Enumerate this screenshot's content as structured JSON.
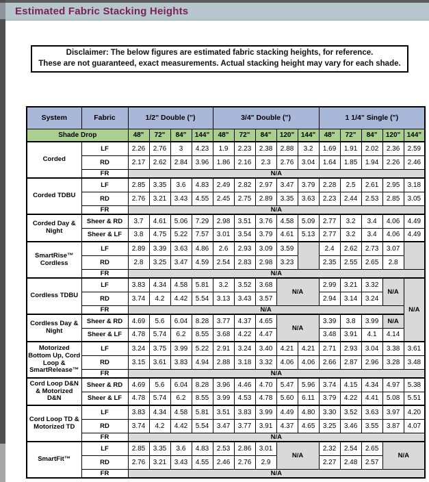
{
  "title": "Estimated Fabric Stacking Heights",
  "disclaimer": {
    "line1": "Disclaimer: The below figures are estimated fabric stacking heights, for reference.",
    "line2": "These are not guaranteed, exact measurements. Actual stacking height may vary for each shade."
  },
  "colors": {
    "title_text": "#7d2252",
    "title_band_bg": "#b5c7cd",
    "header_blue": "#a9b8d8",
    "shade_green": "#a9d08e",
    "na_gray": "#d9d9d9"
  },
  "table": {
    "corner_system": "System",
    "corner_fabric": "Fabric",
    "shade_drop_label": "Shade Drop",
    "na_label": "N/A",
    "groups": [
      {
        "label": "1/2\" Double (\")",
        "cols": [
          "48\"",
          "72\"",
          "84\"",
          "144\""
        ]
      },
      {
        "label": "3/4\" Double (\")",
        "cols": [
          "48\"",
          "72\"",
          "84\"",
          "120\"",
          "144\""
        ]
      },
      {
        "label": "1 1/4\" Single (\")",
        "cols": [
          "48\"",
          "72\"",
          "84\"",
          "120\"",
          "144\""
        ]
      }
    ],
    "sections": [
      {
        "system": "Corded",
        "rows": [
          {
            "fabric": "LF",
            "cells": [
              "2.26",
              "2.76",
              "3",
              "4.23",
              "1.9",
              "2.23",
              "2.38",
              "2.88",
              "3.2",
              "1.69",
              "1.91",
              "2.02",
              "2.36",
              "2.59"
            ]
          },
          {
            "fabric": "RD",
            "cells": [
              "2.17",
              "2.62",
              "2.84",
              "3.96",
              "1.86",
              "2.16",
              "2.3",
              "2.76",
              "3.04",
              "1.64",
              "1.85",
              "1.94",
              "2.26",
              "2.46"
            ]
          },
          {
            "fabric": "FR",
            "cells": [
              {
                "na": true,
                "c": 14
              }
            ]
          }
        ]
      },
      {
        "system": "Corded TDBU",
        "rows": [
          {
            "fabric": "LF",
            "cells": [
              "2.85",
              "3.35",
              "3.6",
              "4.83",
              "2.49",
              "2.82",
              "2.97",
              "3.47",
              "3.79",
              "2.28",
              "2.5",
              "2.61",
              "2.95",
              "3.18"
            ]
          },
          {
            "fabric": "RD",
            "cells": [
              "2.76",
              "3.21",
              "3.43",
              "4.55",
              "2.45",
              "2.75",
              "2.89",
              "3.35",
              "3.63",
              "2.23",
              "2.44",
              "2.53",
              "2.85",
              "3.05"
            ]
          },
          {
            "fabric": "FR",
            "cells": [
              {
                "na": true,
                "c": 14
              }
            ]
          }
        ]
      },
      {
        "system": "Corded Day & Night",
        "rows": [
          {
            "fabric": "Sheer & RD",
            "cells": [
              "3.7",
              "4.61",
              "5.06",
              "7.29",
              "2.98",
              "3.51",
              "3.76",
              "4.58",
              "5.09",
              "2.77",
              "3.2",
              "3.4",
              "4.06",
              "4.49"
            ]
          },
          {
            "fabric": "Sheer & LF",
            "cells": [
              "3.8",
              "4.75",
              "5.22",
              "7.57",
              "3.01",
              "3.54",
              "3.79",
              "4.61",
              "5.13",
              "2.77",
              "3.2",
              "3.4",
              "4.06",
              "4.49"
            ]
          }
        ]
      },
      {
        "system": "SmartRise™ Cordless",
        "rows": [
          {
            "fabric": "LF",
            "cells": [
              "2.89",
              "3.39",
              "3.63",
              "4.86",
              "2.6",
              "2.93",
              "3.09",
              "3.59",
              {
                "gray": true,
                "r": 2
              },
              "2.4",
              "2.62",
              "2.73",
              "3.07",
              {
                "gray": true,
                "r": 2
              }
            ]
          },
          {
            "fabric": "RD",
            "cells": [
              "2.8",
              "3.25",
              "3.47",
              "4.59",
              "2.54",
              "2.83",
              "2.98",
              "3.23",
              "2.35",
              "2.55",
              "2.65",
              "2.8"
            ]
          },
          {
            "fabric": "FR",
            "cells": [
              {
                "na": true,
                "c": 14
              }
            ]
          }
        ]
      },
      {
        "system": "Cordless TDBU",
        "rows": [
          {
            "fabric": "LF",
            "cells": [
              "3.83",
              "4.34",
              "4.58",
              "5.81",
              "3.2",
              "3.52",
              "3.68",
              {
                "na": true,
                "c": 2,
                "r": 2
              },
              "2.99",
              "3.21",
              "3.32",
              {
                "na": true,
                "r": 2
              },
              {
                "na": true,
                "r": 5
              }
            ]
          },
          {
            "fabric": "RD",
            "cells": [
              "3.74",
              "4.2",
              "4.42",
              "5.54",
              "3.13",
              "3.43",
              "3.57",
              "2.94",
              "3.14",
              "3.24"
            ]
          },
          {
            "fabric": "FR",
            "cells": [
              {
                "na": true,
                "c": 13
              }
            ]
          }
        ]
      },
      {
        "system": "Cordless Day & Night",
        "rows": [
          {
            "fabric": "Sheer & RD",
            "cells": [
              "4.69",
              "5.6",
              "6.04",
              "8.28",
              "3.77",
              "4.37",
              "4.65",
              {
                "na": true,
                "c": 2,
                "r": 2
              },
              "3.39",
              "3.8",
              "3.99",
              {
                "na": true
              }
            ]
          },
          {
            "fabric": "Sheer & LF",
            "cells": [
              "4.78",
              "5.74",
              "6.2",
              "8.55",
              "3.68",
              "4.22",
              "4.47",
              "3.48",
              "3.91",
              "4.1",
              "4.14"
            ]
          }
        ]
      },
      {
        "system": "Motorized Bottom Up, Cord Loop & SmartRelease™",
        "rows": [
          {
            "fabric": "LF",
            "cells": [
              "3.24",
              "3.75",
              "3.99",
              "5.22",
              "2.91",
              "3.24",
              "3.40",
              "4.21",
              "4.21",
              "2.71",
              "2.93",
              "3.04",
              "3.38",
              "3.61"
            ]
          },
          {
            "fabric": "RD",
            "cells": [
              "3.15",
              "3.61",
              "3.83",
              "4.94",
              "2.88",
              "3.18",
              "3.32",
              "4.06",
              "4.06",
              "2.66",
              "2.87",
              "2.96",
              "3.28",
              "3.48"
            ]
          },
          {
            "fabric": "FR",
            "cells": [
              {
                "na": true,
                "c": 14
              }
            ]
          }
        ]
      },
      {
        "system": "Cord Loop D&N & Motorized D&N",
        "rows": [
          {
            "fabric": "Sheer & RD",
            "cells": [
              "4.69",
              "5.6",
              "6.04",
              "8.28",
              "3.96",
              "4.46",
              "4.70",
              "5.47",
              "5.96",
              "3.74",
              "4.15",
              "4.34",
              "4.97",
              "5.38"
            ]
          },
          {
            "fabric": "Sheer & LF",
            "cells": [
              "4.78",
              "5.74",
              "6.2",
              "8.55",
              "3.99",
              "4.53",
              "4.78",
              "5.60",
              "6.11",
              "3.79",
              "4.22",
              "4.41",
              "5.08",
              "5.51"
            ]
          }
        ]
      },
      {
        "system": "Cord Loop TD & Motorized TD",
        "rows": [
          {
            "fabric": "LF",
            "cells": [
              "3.83",
              "4.34",
              "4.58",
              "5.81",
              "3.51",
              "3.83",
              "3.99",
              "4.49",
              "4.80",
              "3.30",
              "3.52",
              "3.63",
              "3.97",
              "4.20"
            ]
          },
          {
            "fabric": "RD",
            "cells": [
              "3.74",
              "4.2",
              "4.42",
              "5.54",
              "3.47",
              "3.77",
              "3.91",
              "4.37",
              "4.65",
              "3.25",
              "3.46",
              "3.55",
              "3.87",
              "4.07"
            ]
          },
          {
            "fabric": "FR",
            "cells": [
              {
                "na": true,
                "c": 14
              }
            ]
          }
        ]
      },
      {
        "system": "SmartFit™",
        "rows": [
          {
            "fabric": "LF",
            "cells": [
              "2.85",
              "3.35",
              "3.6",
              "4.83",
              "2.53",
              "2.86",
              "3.01",
              {
                "na": true,
                "c": 2,
                "r": 2
              },
              "2.32",
              "2.54",
              "2.65",
              {
                "na": true,
                "c": 2,
                "r": 2
              }
            ]
          },
          {
            "fabric": "RD",
            "cells": [
              "2.76",
              "3.21",
              "3.43",
              "4.55",
              "2.46",
              "2.76",
              "2.9",
              "2.27",
              "2.48",
              "2.57"
            ]
          },
          {
            "fabric": "FR",
            "cells": [
              {
                "na": true,
                "c": 14
              }
            ]
          }
        ]
      }
    ]
  }
}
